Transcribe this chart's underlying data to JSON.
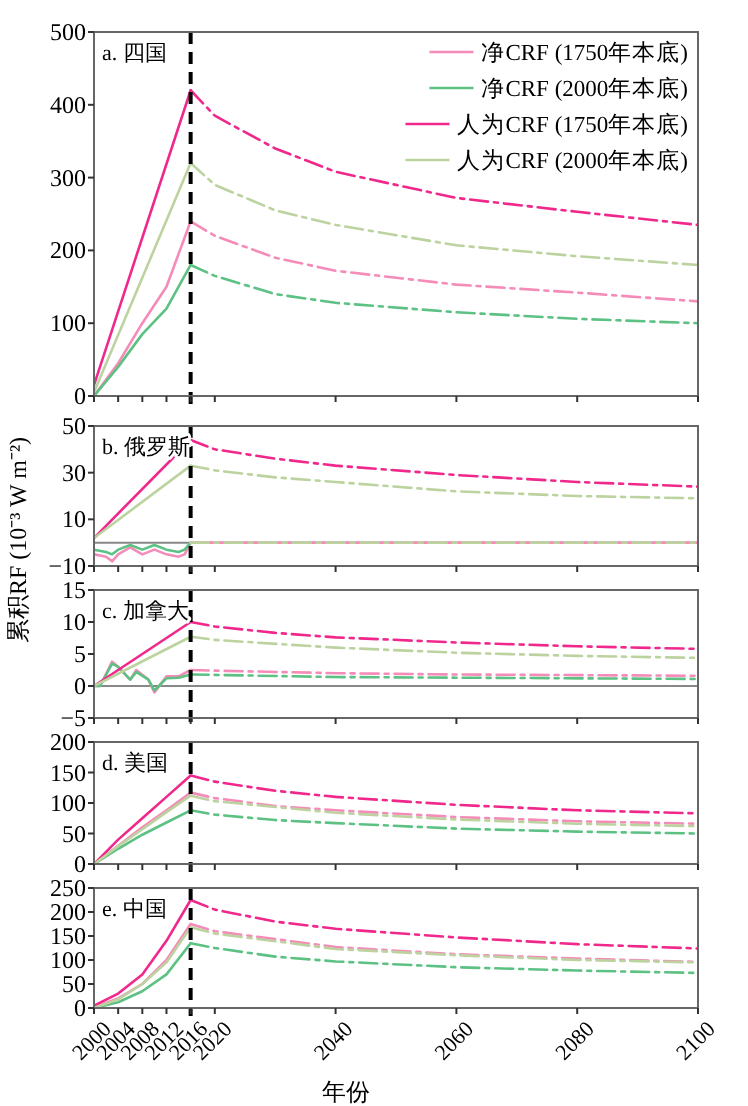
{
  "chart_data": [
    {
      "type": "line",
      "title": "a. 四国",
      "xlim": [
        2000,
        2100
      ],
      "ylim": [
        0,
        500
      ],
      "xticks": [
        2000,
        2004,
        2008,
        2012,
        2016,
        2020,
        2040,
        2060,
        2080,
        2100
      ],
      "yticks": [
        0,
        100,
        200,
        300,
        400,
        500
      ],
      "tick_labels": "y",
      "legend": "top right",
      "ref_lines": [
        {
          "axis": "x",
          "value": 2016,
          "color": "#000000",
          "line_style": "dashed"
        }
      ],
      "series": [
        {
          "name": "净CRF (1750年本底)",
          "color": "#f58bb8",
          "x": [
            2000,
            2004,
            2008,
            2012,
            2016
          ],
          "values": [
            0,
            45,
            100,
            150,
            240
          ]
        },
        {
          "name": "净CRF (2000年本底)",
          "color": "#5cc183",
          "x": [
            2000,
            2004,
            2008,
            2012,
            2016
          ],
          "values": [
            0,
            40,
            85,
            120,
            180
          ]
        },
        {
          "name": "人为CRF (1750年本底)",
          "color": "#f0288c",
          "x": [
            2000,
            2016
          ],
          "values": [
            15,
            420
          ]
        },
        {
          "name": "人为CRF (2000年本底)",
          "color": "#bcd3a0",
          "x": [
            2000,
            2016
          ],
          "values": [
            5,
            320
          ]
        },
        {
          "color": "#f58bb8",
          "line_style": "dashdot",
          "x": [
            2016,
            2020,
            2030,
            2040,
            2060,
            2080,
            2100
          ],
          "values": [
            240,
            220,
            190,
            172,
            153,
            142,
            130
          ]
        },
        {
          "color": "#5cc183",
          "line_style": "dashdot",
          "x": [
            2016,
            2020,
            2030,
            2040,
            2060,
            2080,
            2100
          ],
          "values": [
            180,
            165,
            140,
            128,
            115,
            106,
            100
          ]
        },
        {
          "color": "#f0288c",
          "line_style": "dashdot",
          "x": [
            2016,
            2020,
            2030,
            2040,
            2060,
            2080,
            2100
          ],
          "values": [
            420,
            385,
            340,
            308,
            272,
            253,
            235
          ]
        },
        {
          "color": "#bcd3a0",
          "line_style": "dashdot",
          "x": [
            2016,
            2020,
            2030,
            2040,
            2060,
            2080,
            2100
          ],
          "values": [
            320,
            290,
            255,
            235,
            207,
            192,
            180
          ]
        }
      ]
    },
    {
      "type": "line",
      "title": "b. 俄罗斯",
      "ylabel": "累积RF (10⁻³ W m⁻²)",
      "xlim": [
        2000,
        2100
      ],
      "ylim": [
        -10,
        50
      ],
      "xticks": [
        2000,
        2004,
        2008,
        2012,
        2016,
        2020,
        2040,
        2060,
        2080,
        2100
      ],
      "yticks": [
        -10,
        10,
        30,
        50
      ],
      "tick_labels": "y",
      "ref_lines": [
        {
          "axis": "x",
          "value": 2016,
          "color": "#000000",
          "line_style": "dashed"
        },
        {
          "axis": "y",
          "value": 0,
          "color": "#888888",
          "line_style": "solid"
        }
      ],
      "series": [
        {
          "color": "#f58bb8",
          "x": [
            2000,
            2002,
            2003,
            2004,
            2006,
            2008,
            2010,
            2012,
            2014,
            2015,
            2016
          ],
          "values": [
            -5,
            -6,
            -8,
            -5,
            -2,
            -5,
            -3,
            -5,
            -6,
            -5,
            0
          ]
        },
        {
          "color": "#5cc183",
          "x": [
            2000,
            2002,
            2003,
            2004,
            2006,
            2008,
            2010,
            2012,
            2014,
            2015,
            2016
          ],
          "values": [
            -3,
            -4,
            -5,
            -3,
            -1,
            -3,
            -1,
            -3,
            -4,
            -3,
            0
          ]
        },
        {
          "color": "#f0288c",
          "x": [
            2000,
            2016
          ],
          "values": [
            2,
            44
          ]
        },
        {
          "color": "#bcd3a0",
          "x": [
            2000,
            2016
          ],
          "values": [
            2,
            33
          ]
        },
        {
          "color": "#f58bb8",
          "line_style": "solid",
          "x": [
            2016,
            2100
          ],
          "values": [
            0,
            0
          ]
        },
        {
          "color": "#bcd3a0",
          "line_style": "dashdot",
          "x": [
            2016,
            2100
          ],
          "values": [
            0,
            0
          ]
        },
        {
          "color": "#f0288c",
          "line_style": "dashdot",
          "x": [
            2016,
            2020,
            2030,
            2040,
            2060,
            2080,
            2100
          ],
          "values": [
            44,
            40,
            36,
            33,
            29,
            26,
            24
          ]
        },
        {
          "color": "#bcd3a0",
          "line_style": "dashdot",
          "x": [
            2016,
            2020,
            2030,
            2040,
            2060,
            2080,
            2100
          ],
          "values": [
            33,
            31,
            28,
            26,
            22,
            20,
            19
          ]
        }
      ]
    },
    {
      "type": "line",
      "title": "c. 加拿大",
      "xlim": [
        2000,
        2100
      ],
      "ylim": [
        -5,
        15
      ],
      "xticks": [
        2000,
        2004,
        2008,
        2012,
        2016,
        2020,
        2040,
        2060,
        2080,
        2100
      ],
      "yticks": [
        -5,
        0,
        5,
        10,
        15
      ],
      "tick_labels": "y",
      "ref_lines": [
        {
          "axis": "x",
          "value": 2016,
          "color": "#000000",
          "line_style": "dashed"
        },
        {
          "axis": "y",
          "value": 0,
          "color": "#888888",
          "line_style": "solid"
        }
      ],
      "series": [
        {
          "color": "#f58bb8",
          "x": [
            2000,
            2001,
            2003,
            2004,
            2006,
            2007,
            2009,
            2010,
            2012,
            2014,
            2016
          ],
          "values": [
            0,
            0,
            3.8,
            3,
            1,
            2.5,
            1,
            -1,
            1.5,
            1.5,
            2.5
          ]
        },
        {
          "color": "#5cc183",
          "x": [
            2000,
            2001,
            2003,
            2004,
            2006,
            2007,
            2009,
            2010,
            2012,
            2014,
            2016
          ],
          "values": [
            0,
            0,
            3.5,
            3,
            1,
            2.2,
            1,
            -0.7,
            1.2,
            1.3,
            1.8
          ]
        },
        {
          "color": "#f0288c",
          "x": [
            2000,
            2016
          ],
          "values": [
            0,
            10
          ]
        },
        {
          "color": "#bcd3a0",
          "x": [
            2000,
            2016
          ],
          "values": [
            0,
            7.7
          ]
        },
        {
          "color": "#f58bb8",
          "line_style": "dashdot",
          "x": [
            2016,
            2020,
            2040,
            2060,
            2080,
            2100
          ],
          "values": [
            2.5,
            2.4,
            2,
            1.8,
            1.7,
            1.6
          ]
        },
        {
          "color": "#5cc183",
          "line_style": "dashdot",
          "x": [
            2016,
            2040,
            2060,
            2100
          ],
          "values": [
            1.8,
            1.4,
            1.3,
            1.1
          ]
        },
        {
          "color": "#f0288c",
          "line_style": "dashdot",
          "x": [
            2016,
            2020,
            2030,
            2040,
            2060,
            2080,
            2100
          ],
          "values": [
            10,
            9.3,
            8.3,
            7.6,
            6.8,
            6.2,
            5.8
          ]
        },
        {
          "color": "#bcd3a0",
          "line_style": "dashdot",
          "x": [
            2016,
            2020,
            2040,
            2060,
            2080,
            2100
          ],
          "values": [
            7.7,
            7.2,
            6,
            5.2,
            4.7,
            4.4
          ]
        }
      ]
    },
    {
      "type": "line",
      "title": "d. 美国",
      "xlim": [
        2000,
        2100
      ],
      "ylim": [
        0,
        200
      ],
      "xticks": [
        2000,
        2004,
        2008,
        2012,
        2016,
        2020,
        2040,
        2060,
        2080,
        2100
      ],
      "yticks": [
        0,
        50,
        100,
        150,
        200
      ],
      "tick_labels": "y",
      "ref_lines": [
        {
          "axis": "x",
          "value": 2016,
          "color": "#000000",
          "line_style": "dashed"
        }
      ],
      "series": [
        {
          "color": "#f58bb8",
          "x": [
            2000,
            2004,
            2008,
            2012,
            2016
          ],
          "values": [
            0,
            30,
            60,
            88,
            117
          ]
        },
        {
          "color": "#5cc183",
          "x": [
            2000,
            2004,
            2008,
            2012,
            2016
          ],
          "values": [
            0,
            25,
            48,
            68,
            88
          ]
        },
        {
          "color": "#f0288c",
          "x": [
            2000,
            2004,
            2008,
            2012,
            2016
          ],
          "values": [
            0,
            40,
            75,
            110,
            145
          ]
        },
        {
          "color": "#bcd3a0",
          "x": [
            2000,
            2004,
            2008,
            2012,
            2016
          ],
          "values": [
            0,
            29,
            57,
            85,
            112
          ]
        },
        {
          "color": "#f58bb8",
          "line_style": "dashdot",
          "x": [
            2016,
            2020,
            2030,
            2040,
            2060,
            2080,
            2100
          ],
          "values": [
            117,
            108,
            95,
            88,
            77,
            70,
            66
          ]
        },
        {
          "color": "#5cc183",
          "line_style": "dashdot",
          "x": [
            2016,
            2020,
            2030,
            2040,
            2060,
            2080,
            2100
          ],
          "values": [
            88,
            81,
            72,
            67,
            58,
            53,
            50
          ]
        },
        {
          "color": "#f0288c",
          "line_style": "dashdot",
          "x": [
            2016,
            2020,
            2030,
            2040,
            2060,
            2080,
            2100
          ],
          "values": [
            145,
            135,
            120,
            110,
            97,
            88,
            83
          ]
        },
        {
          "color": "#bcd3a0",
          "line_style": "dashdot",
          "x": [
            2016,
            2020,
            2040,
            2060,
            2080,
            2100
          ],
          "values": [
            112,
            103,
            84,
            73,
            66,
            62
          ]
        }
      ]
    },
    {
      "type": "line",
      "title": "e. 中国",
      "xlabel": "年份",
      "xlim": [
        2000,
        2100
      ],
      "ylim": [
        0,
        250
      ],
      "xticks": [
        2000,
        2004,
        2008,
        2012,
        2016,
        2020,
        2040,
        2060,
        2080,
        2100
      ],
      "yticks": [
        0,
        50,
        100,
        150,
        200,
        250
      ],
      "ref_lines": [
        {
          "axis": "x",
          "value": 2016,
          "color": "#000000",
          "line_style": "dashed"
        }
      ],
      "series": [
        {
          "color": "#f58bb8",
          "x": [
            2000,
            2004,
            2008,
            2012,
            2016
          ],
          "values": [
            2,
            20,
            50,
            100,
            175
          ]
        },
        {
          "color": "#5cc183",
          "x": [
            2000,
            2004,
            2008,
            2012,
            2016
          ],
          "values": [
            0,
            12,
            35,
            70,
            135
          ]
        },
        {
          "color": "#f0288c",
          "x": [
            2000,
            2004,
            2008,
            2012,
            2016
          ],
          "values": [
            5,
            30,
            70,
            140,
            225
          ]
        },
        {
          "color": "#bcd3a0",
          "x": [
            2000,
            2004,
            2008,
            2012,
            2016
          ],
          "values": [
            0,
            18,
            50,
            95,
            168
          ]
        },
        {
          "color": "#f58bb8",
          "line_style": "dashdot",
          "x": [
            2016,
            2020,
            2040,
            2060,
            2080,
            2100
          ],
          "values": [
            175,
            160,
            127,
            112,
            103,
            96
          ]
        },
        {
          "color": "#5cc183",
          "line_style": "dashdot",
          "x": [
            2016,
            2020,
            2030,
            2040,
            2060,
            2080,
            2100
          ],
          "values": [
            135,
            125,
            107,
            97,
            85,
            78,
            73
          ]
        },
        {
          "color": "#f0288c",
          "line_style": "dashdot",
          "x": [
            2016,
            2020,
            2030,
            2040,
            2060,
            2080,
            2100
          ],
          "values": [
            225,
            205,
            180,
            165,
            147,
            133,
            124
          ]
        },
        {
          "color": "#bcd3a0",
          "line_style": "dashdot",
          "x": [
            2016,
            2020,
            2040,
            2060,
            2080,
            2100
          ],
          "values": [
            168,
            155,
            123,
            110,
            100,
            95
          ]
        }
      ]
    }
  ]
}
